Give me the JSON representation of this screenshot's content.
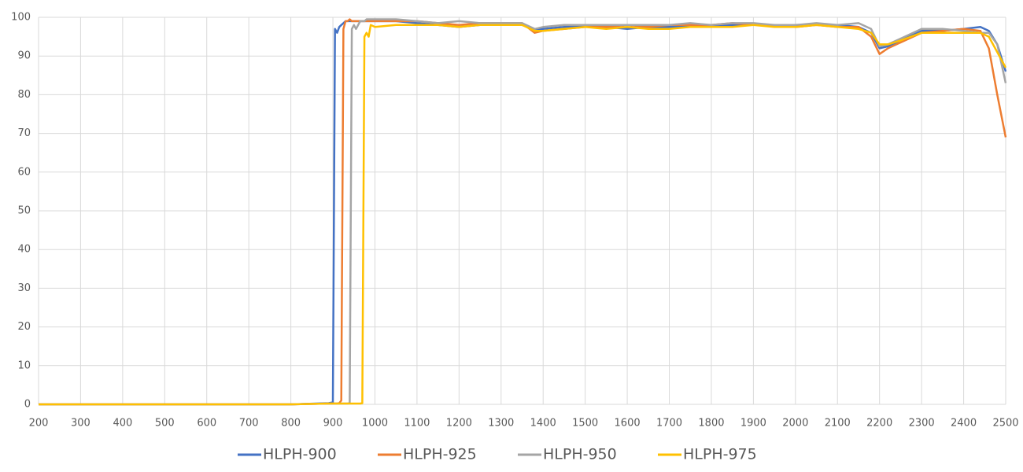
{
  "chart_data": {
    "type": "line",
    "x": [
      200,
      800,
      890,
      900,
      905,
      910,
      915,
      920,
      925,
      930,
      935,
      940,
      945,
      950,
      955,
      960,
      965,
      970,
      975,
      980,
      985,
      990,
      1000,
      1050,
      1100,
      1150,
      1200,
      1250,
      1300,
      1350,
      1380,
      1400,
      1450,
      1500,
      1550,
      1600,
      1650,
      1700,
      1750,
      1800,
      1850,
      1900,
      1950,
      2000,
      2050,
      2100,
      2150,
      2180,
      2200,
      2220,
      2250,
      2300,
      2350,
      2400,
      2440,
      2460,
      2480,
      2500
    ],
    "series": [
      {
        "name": "HLPH-900",
        "color": "#4472c4",
        "values": [
          0,
          0,
          0.3,
          0.5,
          97,
          96,
          97.5,
          98,
          98.5,
          99,
          99,
          99,
          99,
          99,
          99,
          99,
          99,
          99,
          99,
          99,
          99,
          99,
          99,
          99,
          98.5,
          98,
          97.5,
          98,
          98,
          98,
          97,
          97,
          97.5,
          97.5,
          97.5,
          97,
          97.5,
          97.5,
          97.5,
          98,
          98,
          98,
          98,
          98,
          98,
          98,
          97.5,
          96,
          92,
          92.5,
          94,
          96.5,
          96.5,
          97,
          97.5,
          96.5,
          93,
          86
        ]
      },
      {
        "name": "HLPH-925",
        "color": "#ed7d31",
        "values": [
          0,
          0,
          0.2,
          0.2,
          0.2,
          0.2,
          0.3,
          1,
          97,
          99,
          99,
          99.5,
          99,
          99,
          99,
          99,
          99,
          99,
          99,
          99,
          99,
          99,
          99,
          99,
          99,
          98.5,
          98,
          98.5,
          98.5,
          98.5,
          96,
          96.5,
          97,
          97.5,
          97.5,
          98,
          97.5,
          98,
          98,
          98,
          98.5,
          98,
          98,
          97.5,
          98,
          97.5,
          97.5,
          95,
          90.5,
          92,
          93.5,
          96,
          96.5,
          97,
          96.5,
          92,
          80,
          69
        ]
      },
      {
        "name": "HLPH-950",
        "color": "#a5a5a5",
        "values": [
          0,
          0,
          0.2,
          0.2,
          0.2,
          0.2,
          0.2,
          0.2,
          0.2,
          0.2,
          0.2,
          0.3,
          97,
          98,
          97,
          98,
          99,
          99,
          99,
          99.5,
          99.5,
          99.5,
          99.5,
          99.5,
          99,
          98.5,
          99,
          98.5,
          98.5,
          98.5,
          97,
          97.5,
          98,
          98,
          98,
          98,
          98,
          98,
          98.5,
          98,
          98.5,
          98.5,
          98,
          98,
          98.5,
          98,
          98.5,
          97,
          92.5,
          93,
          94.5,
          97,
          97,
          96.5,
          96,
          96,
          93,
          83
        ]
      },
      {
        "name": "HLPH-975",
        "color": "#ffc000",
        "values": [
          0,
          0,
          0.2,
          0.2,
          0.2,
          0.2,
          0.2,
          0.2,
          0.2,
          0.2,
          0.2,
          0.2,
          0.2,
          0.2,
          0.2,
          0.2,
          0.2,
          0.3,
          95,
          96,
          95,
          98,
          97.5,
          98,
          98,
          98,
          97.5,
          98,
          98,
          98,
          96.5,
          96.5,
          97,
          97.5,
          97,
          97.5,
          97,
          97,
          97.5,
          97.5,
          97.5,
          98,
          97.5,
          97.5,
          98,
          97.5,
          97,
          96,
          93,
          93,
          94,
          96,
          96,
          96,
          96,
          95,
          91,
          87
        ]
      }
    ],
    "xlim": [
      200,
      2500
    ],
    "xticks": [
      200,
      300,
      400,
      500,
      600,
      700,
      800,
      900,
      1000,
      1100,
      1200,
      1300,
      1400,
      1500,
      1600,
      1700,
      1800,
      1900,
      2000,
      2100,
      2200,
      2300,
      2400,
      2500
    ],
    "ylim": [
      0,
      100
    ],
    "yticks": [
      0,
      10,
      20,
      30,
      40,
      50,
      60,
      70,
      80,
      90,
      100
    ],
    "grid": true,
    "legend": "bottom"
  }
}
